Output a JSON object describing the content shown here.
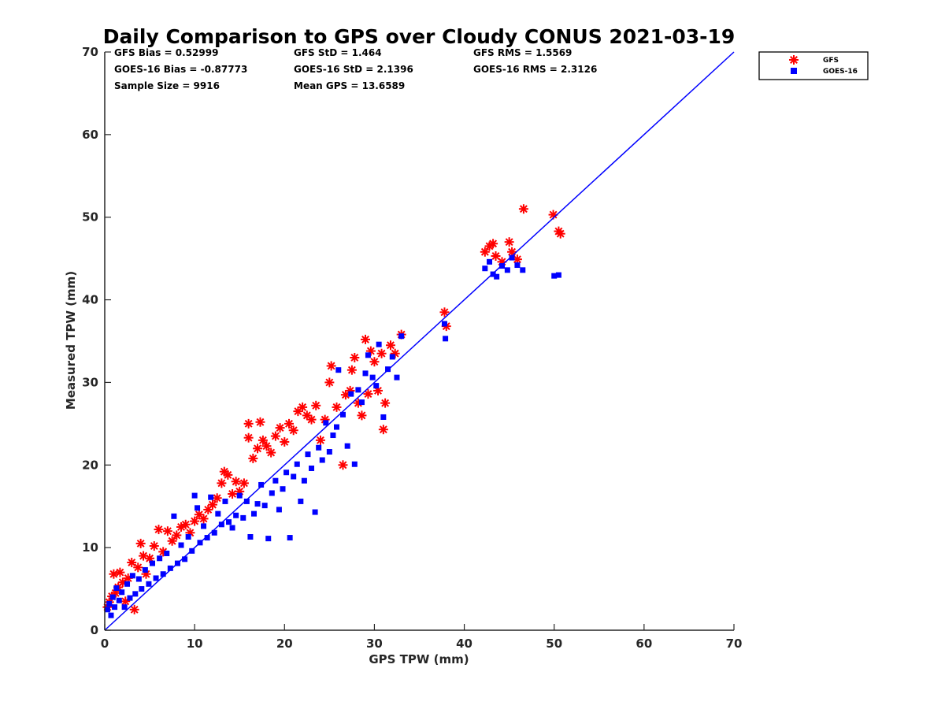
{
  "chart_data": {
    "type": "scatter",
    "title": "Daily Comparison to GPS over Cloudy CONUS 2021-03-19",
    "xlabel": "GPS TPW (mm)",
    "ylabel": "Measured TPW (mm)",
    "xlim": [
      0,
      70
    ],
    "ylim": [
      0,
      70
    ],
    "xticks": [
      "0",
      "10",
      "20",
      "30",
      "40",
      "50",
      "60",
      "70"
    ],
    "yticks": [
      "0",
      "10",
      "20",
      "30",
      "40",
      "50",
      "60",
      "70"
    ],
    "grid": false,
    "legend_position": "outside-top-right",
    "reference_line": {
      "x": [
        0,
        70
      ],
      "y": [
        0,
        70
      ],
      "color": "#0000ff"
    },
    "stats": [
      [
        "GFS Bias = 0.52999",
        "GFS StD = 1.464",
        "GFS RMS = 1.5569"
      ],
      [
        "GOES-16 Bias = -0.87773",
        "GOES-16 StD = 2.1396",
        "GOES-16 RMS = 2.3126"
      ],
      [
        "Sample Size = 9916",
        "Mean GPS = 13.6589"
      ]
    ],
    "series": [
      {
        "name": "GFS",
        "marker": "asterisk",
        "color": "#ff0000",
        "points": [
          [
            0.3,
            2.8
          ],
          [
            0.5,
            3.4
          ],
          [
            0.8,
            4.1
          ],
          [
            1.0,
            6.8
          ],
          [
            1.2,
            4.5
          ],
          [
            1.5,
            5.2
          ],
          [
            1.7,
            7.0
          ],
          [
            2.0,
            5.8
          ],
          [
            2.3,
            3.5
          ],
          [
            2.6,
            6.3
          ],
          [
            3.0,
            8.2
          ],
          [
            3.3,
            2.5
          ],
          [
            3.7,
            7.6
          ],
          [
            4.0,
            10.5
          ],
          [
            4.3,
            9.0
          ],
          [
            4.6,
            6.8
          ],
          [
            5.0,
            8.7
          ],
          [
            5.5,
            10.2
          ],
          [
            6.0,
            12.2
          ],
          [
            6.5,
            9.5
          ],
          [
            7.0,
            12.0
          ],
          [
            7.5,
            10.8
          ],
          [
            8.0,
            11.5
          ],
          [
            8.5,
            12.5
          ],
          [
            9.0,
            12.8
          ],
          [
            9.5,
            11.8
          ],
          [
            10.0,
            13.2
          ],
          [
            10.5,
            14.0
          ],
          [
            11.0,
            13.5
          ],
          [
            11.5,
            14.6
          ],
          [
            12.0,
            15.2
          ],
          [
            12.5,
            16.0
          ],
          [
            13.0,
            17.8
          ],
          [
            13.3,
            19.2
          ],
          [
            13.7,
            18.8
          ],
          [
            14.2,
            16.5
          ],
          [
            14.6,
            18.0
          ],
          [
            15.0,
            16.8
          ],
          [
            15.5,
            17.8
          ],
          [
            16.0,
            25.0
          ],
          [
            16.0,
            23.3
          ],
          [
            16.5,
            20.8
          ],
          [
            17.0,
            22.0
          ],
          [
            17.3,
            25.2
          ],
          [
            17.6,
            23.0
          ],
          [
            18.0,
            22.3
          ],
          [
            18.5,
            21.5
          ],
          [
            19.0,
            23.5
          ],
          [
            19.5,
            24.5
          ],
          [
            20.0,
            22.8
          ],
          [
            20.5,
            25.0
          ],
          [
            21.0,
            24.2
          ],
          [
            21.5,
            26.5
          ],
          [
            22.0,
            27.0
          ],
          [
            22.5,
            26.0
          ],
          [
            23.0,
            25.5
          ],
          [
            23.5,
            27.2
          ],
          [
            24.0,
            23.0
          ],
          [
            24.5,
            25.5
          ],
          [
            25.0,
            30.0
          ],
          [
            25.2,
            32.0
          ],
          [
            25.8,
            27.0
          ],
          [
            26.5,
            20.0
          ],
          [
            26.8,
            28.5
          ],
          [
            27.3,
            29.0
          ],
          [
            27.5,
            31.5
          ],
          [
            27.8,
            33.0
          ],
          [
            28.2,
            27.5
          ],
          [
            28.6,
            26.0
          ],
          [
            29.0,
            35.2
          ],
          [
            29.3,
            28.6
          ],
          [
            29.6,
            33.8
          ],
          [
            30.0,
            32.5
          ],
          [
            30.4,
            29.0
          ],
          [
            30.8,
            33.5
          ],
          [
            31.0,
            24.3
          ],
          [
            31.2,
            27.5
          ],
          [
            31.8,
            34.5
          ],
          [
            32.3,
            33.5
          ],
          [
            33.0,
            35.8
          ],
          [
            37.8,
            38.5
          ],
          [
            38.0,
            36.8
          ],
          [
            42.3,
            45.8
          ],
          [
            42.8,
            46.5
          ],
          [
            43.2,
            46.8
          ],
          [
            43.5,
            45.3
          ],
          [
            44.2,
            44.6
          ],
          [
            45.0,
            47.0
          ],
          [
            45.3,
            45.8
          ],
          [
            45.9,
            44.9
          ],
          [
            46.6,
            51.0
          ],
          [
            49.9,
            50.3
          ],
          [
            50.5,
            48.3
          ],
          [
            50.7,
            48.0
          ]
        ]
      },
      {
        "name": "GOES-16",
        "marker": "square",
        "color": "#0000ff",
        "points": [
          [
            0.3,
            2.5
          ],
          [
            0.5,
            3.2
          ],
          [
            0.7,
            1.8
          ],
          [
            0.9,
            4.0
          ],
          [
            1.1,
            2.8
          ],
          [
            1.3,
            5.1
          ],
          [
            1.6,
            3.6
          ],
          [
            1.9,
            4.6
          ],
          [
            2.2,
            2.8
          ],
          [
            2.5,
            5.6
          ],
          [
            2.8,
            3.9
          ],
          [
            3.1,
            6.6
          ],
          [
            3.4,
            4.4
          ],
          [
            3.8,
            6.2
          ],
          [
            4.1,
            5.0
          ],
          [
            4.5,
            7.3
          ],
          [
            4.9,
            5.6
          ],
          [
            5.3,
            8.1
          ],
          [
            5.7,
            6.3
          ],
          [
            6.1,
            8.7
          ],
          [
            6.5,
            6.8
          ],
          [
            6.9,
            9.3
          ],
          [
            7.3,
            7.5
          ],
          [
            7.7,
            13.8
          ],
          [
            8.1,
            8.1
          ],
          [
            8.5,
            10.3
          ],
          [
            8.9,
            8.6
          ],
          [
            9.3,
            11.3
          ],
          [
            9.7,
            9.6
          ],
          [
            10.0,
            16.3
          ],
          [
            10.3,
            14.8
          ],
          [
            10.6,
            10.6
          ],
          [
            11.0,
            12.6
          ],
          [
            11.4,
            11.2
          ],
          [
            11.8,
            16.1
          ],
          [
            12.2,
            11.8
          ],
          [
            12.6,
            14.1
          ],
          [
            13.0,
            12.8
          ],
          [
            13.4,
            15.6
          ],
          [
            13.8,
            13.1
          ],
          [
            14.2,
            12.4
          ],
          [
            14.6,
            13.9
          ],
          [
            15.0,
            16.3
          ],
          [
            15.4,
            13.6
          ],
          [
            15.8,
            15.6
          ],
          [
            16.2,
            11.3
          ],
          [
            16.6,
            14.1
          ],
          [
            17.0,
            15.3
          ],
          [
            17.4,
            17.6
          ],
          [
            17.8,
            15.1
          ],
          [
            18.2,
            11.1
          ],
          [
            18.6,
            16.6
          ],
          [
            19.0,
            18.1
          ],
          [
            19.4,
            14.6
          ],
          [
            19.8,
            17.1
          ],
          [
            20.2,
            19.1
          ],
          [
            20.6,
            11.2
          ],
          [
            21.0,
            18.6
          ],
          [
            21.4,
            20.1
          ],
          [
            21.8,
            15.6
          ],
          [
            22.2,
            18.1
          ],
          [
            22.6,
            21.3
          ],
          [
            23.0,
            19.6
          ],
          [
            23.4,
            14.3
          ],
          [
            23.8,
            22.1
          ],
          [
            24.2,
            20.6
          ],
          [
            24.6,
            25.1
          ],
          [
            25.0,
            21.6
          ],
          [
            25.4,
            23.6
          ],
          [
            25.8,
            24.6
          ],
          [
            26.0,
            31.5
          ],
          [
            26.5,
            26.1
          ],
          [
            27.0,
            22.3
          ],
          [
            27.4,
            28.6
          ],
          [
            27.8,
            20.1
          ],
          [
            28.2,
            29.1
          ],
          [
            28.6,
            27.6
          ],
          [
            29.0,
            31.1
          ],
          [
            29.3,
            33.3
          ],
          [
            29.8,
            30.6
          ],
          [
            30.2,
            29.6
          ],
          [
            30.5,
            34.6
          ],
          [
            31.0,
            25.8
          ],
          [
            31.5,
            31.6
          ],
          [
            32.0,
            33.1
          ],
          [
            32.5,
            30.6
          ],
          [
            33.0,
            35.6
          ],
          [
            37.8,
            37.1
          ],
          [
            37.9,
            35.3
          ],
          [
            42.3,
            43.8
          ],
          [
            42.8,
            44.6
          ],
          [
            43.2,
            43.1
          ],
          [
            43.6,
            42.8
          ],
          [
            44.2,
            44.1
          ],
          [
            44.8,
            43.6
          ],
          [
            45.3,
            45.1
          ],
          [
            45.9,
            44.2
          ],
          [
            46.5,
            43.6
          ],
          [
            50.0,
            42.9
          ],
          [
            50.5,
            43.0
          ]
        ]
      }
    ]
  }
}
